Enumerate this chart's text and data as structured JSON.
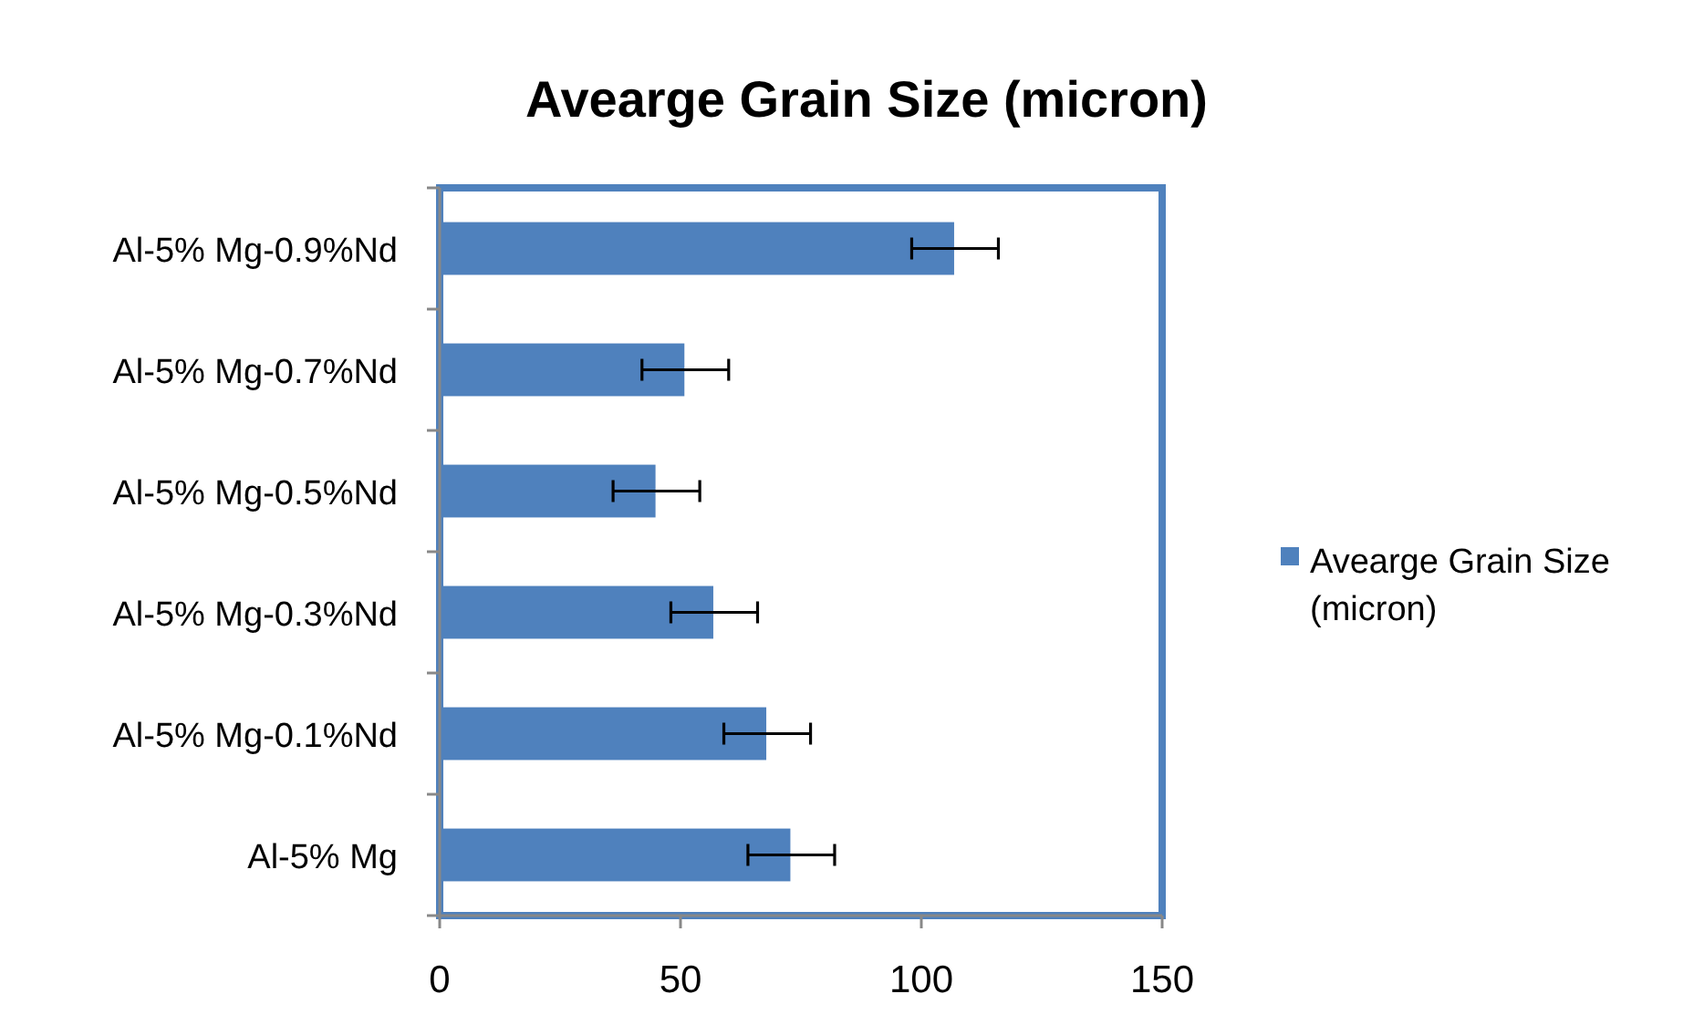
{
  "chart_data": {
    "type": "bar",
    "orientation": "horizontal",
    "title": "Avearge Grain Size (micron)",
    "categories": [
      "Al-5% Mg-0.9%Nd",
      "Al-5% Mg-0.7%Nd",
      "Al-5% Mg-0.5%Nd",
      "Al-5% Mg-0.3%Nd",
      "Al-5% Mg-0.1%Nd",
      "Al-5% Mg"
    ],
    "series": [
      {
        "name": "Avearge Grain Size (micron)",
        "color": "#4f81bd",
        "values": [
          107,
          51,
          45,
          57,
          68,
          73
        ],
        "errors": [
          9,
          9,
          9,
          9,
          9,
          9
        ]
      }
    ],
    "xlim": [
      0,
      150
    ],
    "xticks": [
      0,
      50,
      100,
      150
    ],
    "grid": false,
    "legend": "right"
  }
}
